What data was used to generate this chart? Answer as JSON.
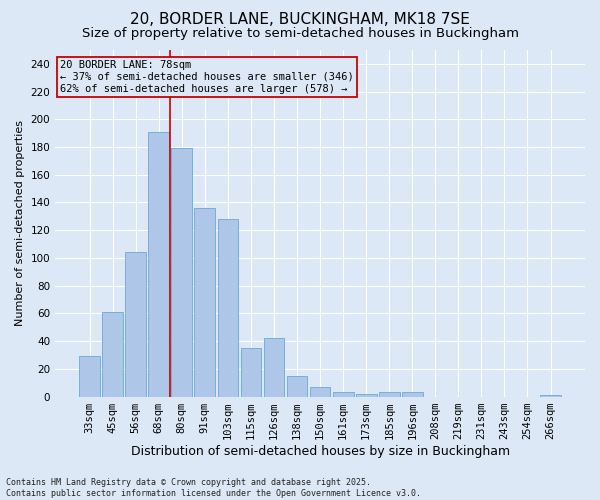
{
  "title1": "20, BORDER LANE, BUCKINGHAM, MK18 7SE",
  "title2": "Size of property relative to semi-detached houses in Buckingham",
  "xlabel": "Distribution of semi-detached houses by size in Buckingham",
  "ylabel": "Number of semi-detached properties",
  "annotation_title": "20 BORDER LANE: 78sqm",
  "annotation_line1": "← 37% of semi-detached houses are smaller (346)",
  "annotation_line2": "62% of semi-detached houses are larger (578) →",
  "footer": "Contains HM Land Registry data © Crown copyright and database right 2025.\nContains public sector information licensed under the Open Government Licence v3.0.",
  "categories": [
    "33sqm",
    "45sqm",
    "56sqm",
    "68sqm",
    "80sqm",
    "91sqm",
    "103sqm",
    "115sqm",
    "126sqm",
    "138sqm",
    "150sqm",
    "161sqm",
    "173sqm",
    "185sqm",
    "196sqm",
    "208sqm",
    "219sqm",
    "231sqm",
    "243sqm",
    "254sqm",
    "266sqm"
  ],
  "values": [
    29,
    61,
    104,
    191,
    179,
    136,
    128,
    35,
    42,
    15,
    7,
    3,
    2,
    3,
    3,
    0,
    0,
    0,
    0,
    0,
    1
  ],
  "bar_color": "#aec6e8",
  "bar_edge_color": "#6aaad4",
  "vline_index": 4,
  "vline_color": "#cc0000",
  "annotation_box_color": "#cc0000",
  "background_color": "#dce8f5",
  "grid_color": "#ffffff",
  "ylim": [
    0,
    250
  ],
  "yticks": [
    0,
    20,
    40,
    60,
    80,
    100,
    120,
    140,
    160,
    180,
    200,
    220,
    240
  ],
  "title1_fontsize": 11,
  "title2_fontsize": 9.5,
  "xlabel_fontsize": 9,
  "ylabel_fontsize": 8,
  "tick_fontsize": 7.5,
  "annotation_fontsize": 7.5,
  "footer_fontsize": 6
}
